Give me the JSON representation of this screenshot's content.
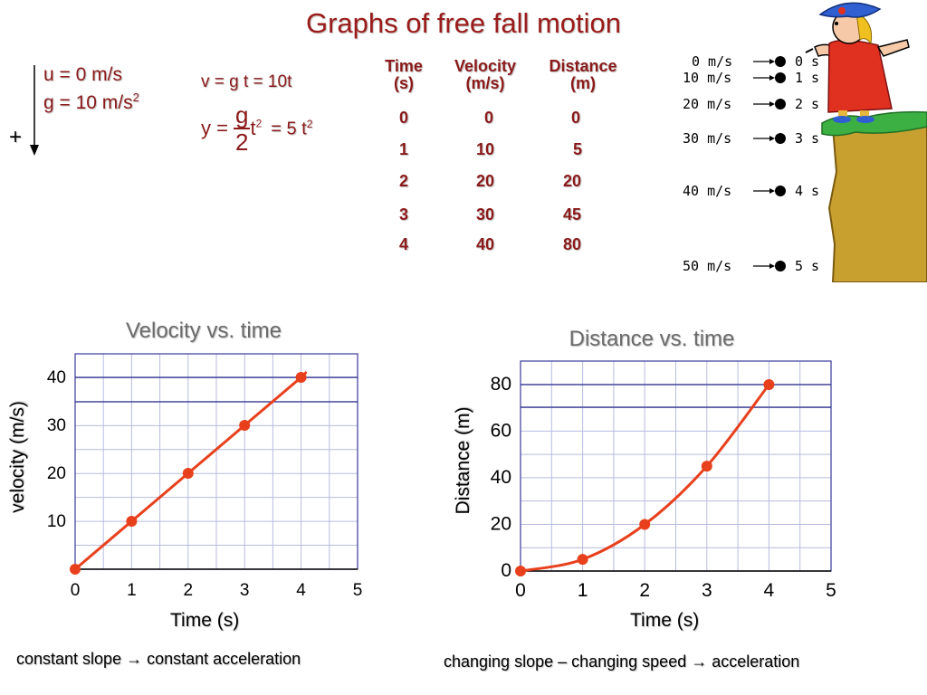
{
  "title": "Graphs of free fall motion",
  "given": {
    "u": "u = 0 m/s",
    "g_prefix": "g = 10 m/s",
    "g_sup": "2",
    "sign": "+"
  },
  "formulas": {
    "velocity": "v  = g t = 10t",
    "y_prefix": "y =",
    "frac_num": "g",
    "frac_den": "2",
    "t_base": "t",
    "t_sup": "2",
    "result_prefix": "= 5 t",
    "result_sup": "2"
  },
  "table": {
    "headers": [
      {
        "line1": "Time",
        "line2": "(s)"
      },
      {
        "line1": "Velocity",
        "line2": "(m/s)"
      },
      {
        "line1": "Distance",
        "line2": "(m)"
      }
    ],
    "rows": [
      [
        "0",
        "0",
        "0"
      ],
      [
        "1",
        "10",
        "5"
      ],
      [
        "2",
        "20",
        "20"
      ],
      [
        "3",
        "30",
        "45"
      ],
      [
        "4",
        "40",
        "80"
      ]
    ]
  },
  "cliff": {
    "labels": [
      "0 m/s",
      "10 m/s",
      "20 m/s",
      "30 m/s",
      "40 m/s",
      "50 m/s"
    ],
    "times": [
      "0 s",
      "1 s",
      "2 s",
      "3 s",
      "4 s",
      "5 s"
    ],
    "colors": {
      "cliff": "#c8a030",
      "grass": "#3cb043",
      "dress": "#e03020",
      "hat": "#2f5fd0"
    }
  },
  "chart_data": [
    {
      "type": "line",
      "title": "Velocity vs. time",
      "xlabel": "Time (s)",
      "ylabel": "velocity (m/s)",
      "x": [
        0,
        1,
        2,
        3,
        4
      ],
      "y": [
        0,
        10,
        20,
        30,
        40
      ],
      "xlim": [
        0,
        5
      ],
      "ylim": [
        0,
        40
      ],
      "xticks": [
        "0",
        "1",
        "2",
        "3",
        "4",
        "5"
      ],
      "yticks": [
        "10",
        "20",
        "30",
        "40"
      ],
      "grid": true,
      "line_color": "#e8401c",
      "caption": "constant slope  → constant acceleration"
    },
    {
      "type": "line",
      "title": "Distance vs. time",
      "xlabel": "Time (s)",
      "ylabel": "Distance (m)",
      "x": [
        0,
        1,
        2,
        3,
        4
      ],
      "y": [
        0,
        5,
        20,
        45,
        80
      ],
      "xlim": [
        0,
        5
      ],
      "ylim": [
        0,
        80
      ],
      "xticks": [
        "0",
        "1",
        "2",
        "3",
        "4",
        "5"
      ],
      "yticks": [
        "0",
        "20",
        "40",
        "60",
        "80"
      ],
      "grid": true,
      "line_color": "#e8401c",
      "caption": "changing slope – changing speed → acceleration"
    }
  ]
}
